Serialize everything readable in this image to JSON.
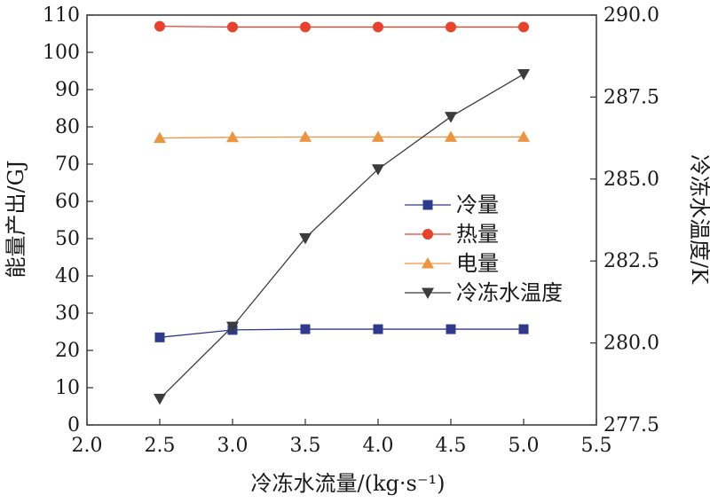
{
  "chart_data": {
    "type": "line",
    "xlabel": "冷冻水流量/(kg·s⁻¹)",
    "ylabel_left": "能量产出/GJ",
    "ylabel_right": "冷冻水温度/K",
    "xlim": [
      2.0,
      5.5
    ],
    "ylim_left": [
      0,
      110
    ],
    "ylim_right": [
      277.5,
      290.0
    ],
    "x_ticks": [
      "2.0",
      "2.5",
      "3.0",
      "3.5",
      "4.0",
      "4.5",
      "5.0",
      "5.5"
    ],
    "y_left_ticks": [
      "0",
      "10",
      "20",
      "30",
      "40",
      "50",
      "60",
      "70",
      "80",
      "90",
      "100",
      "110"
    ],
    "y_right_ticks": [
      "277.5",
      "280.0",
      "282.5",
      "285.0",
      "287.5",
      "290.0"
    ],
    "grid": false,
    "legend_position": "center-right",
    "series": [
      {
        "name": "冷量",
        "axis": "left",
        "marker": "square",
        "color": "#2e3a8c",
        "x": [
          2.5,
          3.0,
          3.5,
          4.0,
          4.5,
          5.0
        ],
        "values": [
          23.5,
          25.5,
          25.7,
          25.7,
          25.7,
          25.7
        ]
      },
      {
        "name": "热量",
        "axis": "left",
        "marker": "circle",
        "color": "#e8412c",
        "x": [
          2.5,
          3.0,
          3.5,
          4.0,
          4.5,
          5.0
        ],
        "values": [
          107.0,
          106.8,
          106.8,
          106.8,
          106.8,
          106.8
        ]
      },
      {
        "name": "电量",
        "axis": "left",
        "marker": "triangle-up",
        "color": "#ee9340",
        "x": [
          2.5,
          3.0,
          3.5,
          4.0,
          4.5,
          5.0
        ],
        "values": [
          77.0,
          77.2,
          77.3,
          77.3,
          77.3,
          77.3
        ]
      },
      {
        "name": "冷冻水温度",
        "axis": "right",
        "marker": "triangle-down",
        "color": "#3c3c3c",
        "x": [
          2.5,
          3.0,
          3.5,
          4.0,
          4.5,
          5.0
        ],
        "values": [
          278.3,
          280.5,
          283.2,
          285.3,
          286.9,
          288.2
        ]
      }
    ]
  }
}
